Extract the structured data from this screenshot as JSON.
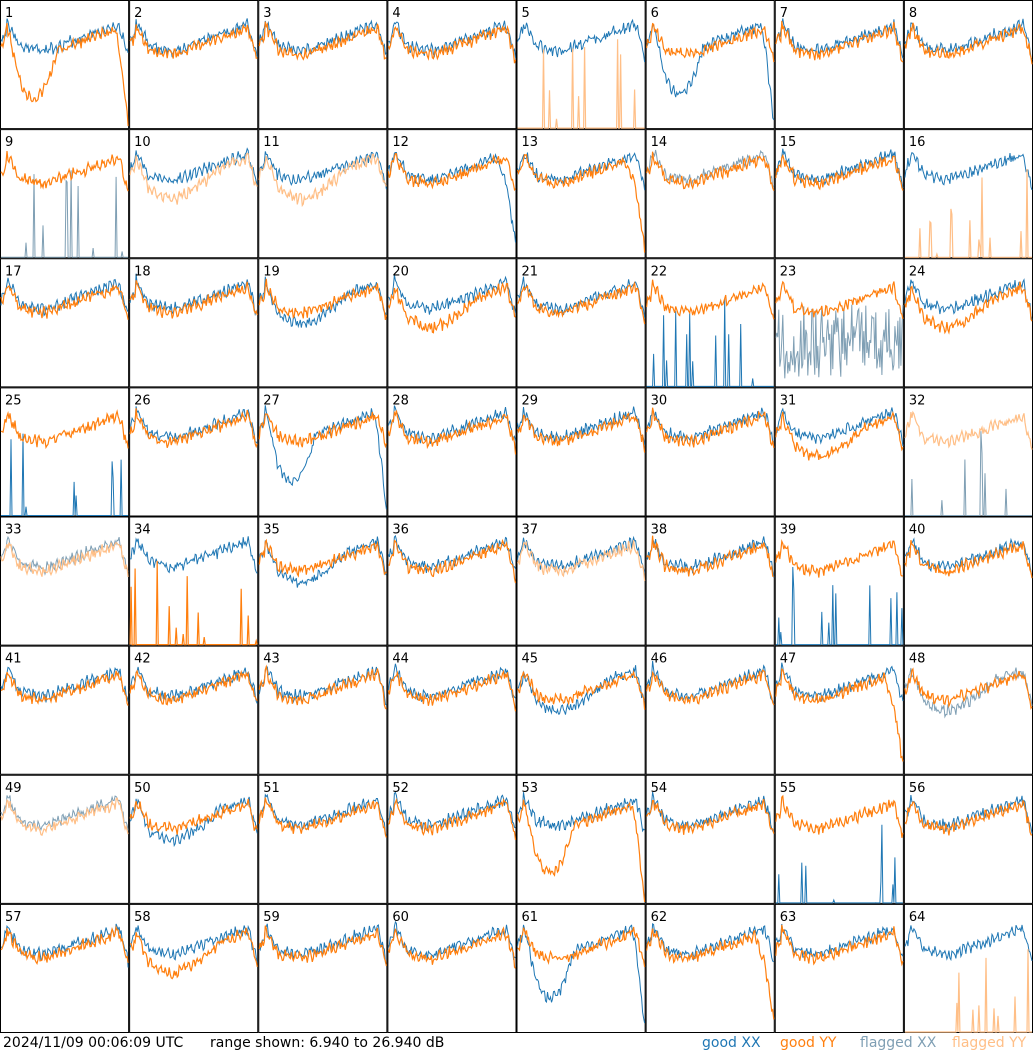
{
  "footer": {
    "timestamp": "2024/11/09 00:06:09 UTC",
    "range_text": "range shown: 6.940 to 26.940 dB",
    "legend": {
      "good_xx": "good XX",
      "good_yy": "good YY",
      "flagged_xx": "flagged XX",
      "flagged_yy": "flagged YY"
    }
  },
  "colors": {
    "good_xx": "#1f77b4",
    "good_yy": "#ff7f0e",
    "flagged_xx": "#7f9fb4",
    "flagged_yy": "#ffbf87",
    "grid": "#000000",
    "background": "#ffffff"
  },
  "chart_data": {
    "type": "line",
    "grid": {
      "rows": 8,
      "cols": 8
    },
    "ylim": [
      6.94,
      26.94
    ],
    "yunit": "dB",
    "panels": [
      {
        "id": "1",
        "xx": "good",
        "yy": "good",
        "xx_shape": "normal",
        "yy_shape": "dip"
      },
      {
        "id": "2",
        "xx": "good",
        "yy": "good",
        "xx_shape": "normal",
        "yy_shape": "normal"
      },
      {
        "id": "3",
        "xx": "good",
        "yy": "good",
        "xx_shape": "normal",
        "yy_shape": "normal"
      },
      {
        "id": "4",
        "xx": "good",
        "yy": "good",
        "xx_shape": "normal",
        "yy_shape": "normal"
      },
      {
        "id": "5",
        "xx": "good",
        "yy": "flagged",
        "xx_shape": "normal",
        "yy_shape": "spikes"
      },
      {
        "id": "6",
        "xx": "good",
        "yy": "good",
        "xx_shape": "dip",
        "yy_shape": "normal"
      },
      {
        "id": "7",
        "xx": "good",
        "yy": "good",
        "xx_shape": "normal",
        "yy_shape": "normal"
      },
      {
        "id": "8",
        "xx": "good",
        "yy": "good",
        "xx_shape": "normal",
        "yy_shape": "normal"
      },
      {
        "id": "9",
        "xx": "flagged",
        "yy": "good",
        "xx_shape": "spikes",
        "yy_shape": "normal"
      },
      {
        "id": "10",
        "xx": "good",
        "yy": "flagged",
        "xx_shape": "normal",
        "yy_shape": "low"
      },
      {
        "id": "11",
        "xx": "good",
        "yy": "flagged",
        "xx_shape": "normal",
        "yy_shape": "low"
      },
      {
        "id": "12",
        "xx": "good",
        "yy": "good",
        "xx_shape": "lowend",
        "yy_shape": "normal"
      },
      {
        "id": "13",
        "xx": "good",
        "yy": "good",
        "xx_shape": "normal",
        "yy_shape": "lowend"
      },
      {
        "id": "14",
        "xx": "flagged",
        "yy": "good",
        "xx_shape": "normal",
        "yy_shape": "normal"
      },
      {
        "id": "15",
        "xx": "good",
        "yy": "good",
        "xx_shape": "normal",
        "yy_shape": "normal"
      },
      {
        "id": "16",
        "xx": "good",
        "yy": "flagged",
        "xx_shape": "normal",
        "yy_shape": "spikes"
      },
      {
        "id": "17",
        "xx": "good",
        "yy": "good",
        "xx_shape": "normal",
        "yy_shape": "normal"
      },
      {
        "id": "18",
        "xx": "good",
        "yy": "good",
        "xx_shape": "normal",
        "yy_shape": "normal"
      },
      {
        "id": "19",
        "xx": "good",
        "yy": "good",
        "xx_shape": "low",
        "yy_shape": "normal"
      },
      {
        "id": "20",
        "xx": "good",
        "yy": "good",
        "xx_shape": "normal",
        "yy_shape": "low"
      },
      {
        "id": "21",
        "xx": "good",
        "yy": "good",
        "xx_shape": "normal",
        "yy_shape": "normal"
      },
      {
        "id": "22",
        "xx": "good",
        "yy": "good",
        "xx_shape": "spikes",
        "yy_shape": "normal"
      },
      {
        "id": "23",
        "xx": "flagged",
        "yy": "good",
        "xx_shape": "noisy",
        "yy_shape": "normal"
      },
      {
        "id": "24",
        "xx": "good",
        "yy": "good",
        "xx_shape": "normal",
        "yy_shape": "low"
      },
      {
        "id": "25",
        "xx": "good",
        "yy": "good",
        "xx_shape": "spikes",
        "yy_shape": "normal"
      },
      {
        "id": "26",
        "xx": "good",
        "yy": "good",
        "xx_shape": "normal",
        "yy_shape": "normal"
      },
      {
        "id": "27",
        "xx": "good",
        "yy": "good",
        "xx_shape": "dip",
        "yy_shape": "normal"
      },
      {
        "id": "28",
        "xx": "good",
        "yy": "good",
        "xx_shape": "normal",
        "yy_shape": "normal"
      },
      {
        "id": "29",
        "xx": "good",
        "yy": "good",
        "xx_shape": "normal",
        "yy_shape": "normal"
      },
      {
        "id": "30",
        "xx": "good",
        "yy": "good",
        "xx_shape": "normal",
        "yy_shape": "normal"
      },
      {
        "id": "31",
        "xx": "good",
        "yy": "good",
        "xx_shape": "normal",
        "yy_shape": "low"
      },
      {
        "id": "32",
        "xx": "flagged",
        "yy": "flagged",
        "xx_shape": "spikes",
        "yy_shape": "normal"
      },
      {
        "id": "33",
        "xx": "flagged",
        "yy": "flagged",
        "xx_shape": "normal",
        "yy_shape": "normal"
      },
      {
        "id": "34",
        "xx": "good",
        "yy": "good",
        "xx_shape": "normal",
        "yy_shape": "spikes"
      },
      {
        "id": "35",
        "xx": "good",
        "yy": "good",
        "xx_shape": "low",
        "yy_shape": "normal"
      },
      {
        "id": "36",
        "xx": "good",
        "yy": "good",
        "xx_shape": "normal",
        "yy_shape": "normal"
      },
      {
        "id": "37",
        "xx": "good",
        "yy": "flagged",
        "xx_shape": "normal",
        "yy_shape": "normal"
      },
      {
        "id": "38",
        "xx": "good",
        "yy": "good",
        "xx_shape": "normal",
        "yy_shape": "normal"
      },
      {
        "id": "39",
        "xx": "good",
        "yy": "good",
        "xx_shape": "spikes",
        "yy_shape": "normal"
      },
      {
        "id": "40",
        "xx": "good",
        "yy": "good",
        "xx_shape": "normal",
        "yy_shape": "normal"
      },
      {
        "id": "41",
        "xx": "good",
        "yy": "good",
        "xx_shape": "normal",
        "yy_shape": "normal"
      },
      {
        "id": "42",
        "xx": "good",
        "yy": "good",
        "xx_shape": "normal",
        "yy_shape": "normal"
      },
      {
        "id": "43",
        "xx": "good",
        "yy": "good",
        "xx_shape": "normal",
        "yy_shape": "normal"
      },
      {
        "id": "44",
        "xx": "good",
        "yy": "good",
        "xx_shape": "normal",
        "yy_shape": "normal"
      },
      {
        "id": "45",
        "xx": "good",
        "yy": "good",
        "xx_shape": "low",
        "yy_shape": "normal"
      },
      {
        "id": "46",
        "xx": "good",
        "yy": "good",
        "xx_shape": "normal",
        "yy_shape": "normal"
      },
      {
        "id": "47",
        "xx": "good",
        "yy": "good",
        "xx_shape": "normal",
        "yy_shape": "lowend"
      },
      {
        "id": "48",
        "xx": "flagged",
        "yy": "good",
        "xx_shape": "low",
        "yy_shape": "normal"
      },
      {
        "id": "49",
        "xx": "flagged",
        "yy": "flagged",
        "xx_shape": "normal",
        "yy_shape": "normal"
      },
      {
        "id": "50",
        "xx": "good",
        "yy": "good",
        "xx_shape": "low",
        "yy_shape": "normal"
      },
      {
        "id": "51",
        "xx": "good",
        "yy": "good",
        "xx_shape": "normal",
        "yy_shape": "normal"
      },
      {
        "id": "52",
        "xx": "good",
        "yy": "good",
        "xx_shape": "normal",
        "yy_shape": "normal"
      },
      {
        "id": "53",
        "xx": "good",
        "yy": "good",
        "xx_shape": "normal",
        "yy_shape": "dip"
      },
      {
        "id": "54",
        "xx": "good",
        "yy": "good",
        "xx_shape": "normal",
        "yy_shape": "normal"
      },
      {
        "id": "55",
        "xx": "good",
        "yy": "good",
        "xx_shape": "spikes",
        "yy_shape": "normal"
      },
      {
        "id": "56",
        "xx": "good",
        "yy": "good",
        "xx_shape": "normal",
        "yy_shape": "normal"
      },
      {
        "id": "57",
        "xx": "good",
        "yy": "good",
        "xx_shape": "normal",
        "yy_shape": "normal"
      },
      {
        "id": "58",
        "xx": "good",
        "yy": "good",
        "xx_shape": "normal",
        "yy_shape": "low"
      },
      {
        "id": "59",
        "xx": "good",
        "yy": "good",
        "xx_shape": "normal",
        "yy_shape": "normal"
      },
      {
        "id": "60",
        "xx": "good",
        "yy": "good",
        "xx_shape": "normal",
        "yy_shape": "normal"
      },
      {
        "id": "61",
        "xx": "good",
        "yy": "good",
        "xx_shape": "dip",
        "yy_shape": "normal"
      },
      {
        "id": "62",
        "xx": "good",
        "yy": "good",
        "xx_shape": "normal",
        "yy_shape": "lowend"
      },
      {
        "id": "63",
        "xx": "good",
        "yy": "good",
        "xx_shape": "normal",
        "yy_shape": "normal"
      },
      {
        "id": "64",
        "xx": "good",
        "yy": "flagged",
        "xx_shape": "normal",
        "yy_shape": "spikes"
      }
    ]
  }
}
